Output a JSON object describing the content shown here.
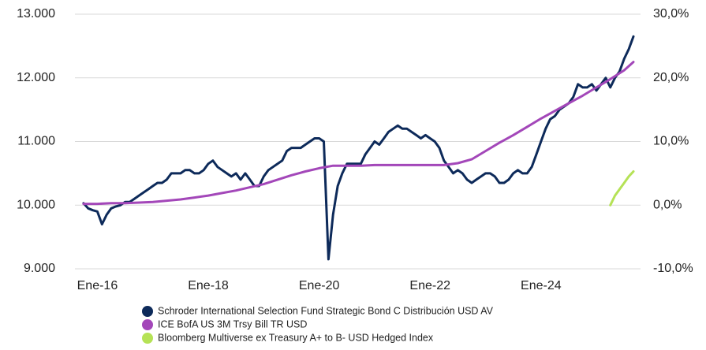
{
  "chart_data": {
    "type": "line",
    "xlim": [
      "2015-09",
      "2025-09"
    ],
    "xticks": [
      {
        "value": "2016-01",
        "label": "Ene-16"
      },
      {
        "value": "2018-01",
        "label": "Ene-18"
      },
      {
        "value": "2020-01",
        "label": "Ene-20"
      },
      {
        "value": "2022-01",
        "label": "Ene-22"
      },
      {
        "value": "2024-01",
        "label": "Ene-24"
      }
    ],
    "ylim": [
      9000,
      13000
    ],
    "yticks": [
      {
        "value": 9000,
        "label": "9.000"
      },
      {
        "value": 10000,
        "label": "10.000"
      },
      {
        "value": 11000,
        "label": "11.000"
      },
      {
        "value": 12000,
        "label": "12.000"
      },
      {
        "value": 13000,
        "label": "13.000"
      }
    ],
    "y2lim": [
      -10,
      30
    ],
    "y2ticks": [
      {
        "value": -10,
        "label": "-10,0%"
      },
      {
        "value": 0,
        "label": "0,0%"
      },
      {
        "value": 10,
        "label": "10,0%"
      },
      {
        "value": 20,
        "label": "20,0%"
      },
      {
        "value": 30,
        "label": "30,0%"
      }
    ],
    "grid": true,
    "legend": "bottom",
    "series": [
      {
        "name": "Schroder International Selection Fund Strategic Bond C Distribución USD AV",
        "color": "#0d2a5a",
        "x": [
          "2015-10",
          "2015-11",
          "2015-12",
          "2016-01",
          "2016-02",
          "2016-03",
          "2016-04",
          "2016-05",
          "2016-06",
          "2016-07",
          "2016-08",
          "2016-09",
          "2016-10",
          "2016-11",
          "2016-12",
          "2017-01",
          "2017-02",
          "2017-03",
          "2017-04",
          "2017-05",
          "2017-06",
          "2017-07",
          "2017-08",
          "2017-09",
          "2017-10",
          "2017-11",
          "2017-12",
          "2018-01",
          "2018-02",
          "2018-03",
          "2018-04",
          "2018-05",
          "2018-06",
          "2018-07",
          "2018-08",
          "2018-09",
          "2018-10",
          "2018-11",
          "2018-12",
          "2019-01",
          "2019-02",
          "2019-03",
          "2019-04",
          "2019-05",
          "2019-06",
          "2019-07",
          "2019-08",
          "2019-09",
          "2019-10",
          "2019-11",
          "2019-12",
          "2020-01",
          "2020-02",
          "2020-03",
          "2020-04",
          "2020-05",
          "2020-06",
          "2020-07",
          "2020-08",
          "2020-09",
          "2020-10",
          "2020-11",
          "2020-12",
          "2021-01",
          "2021-02",
          "2021-03",
          "2021-04",
          "2021-05",
          "2021-06",
          "2021-07",
          "2021-08",
          "2021-09",
          "2021-10",
          "2021-11",
          "2021-12",
          "2022-01",
          "2022-02",
          "2022-03",
          "2022-04",
          "2022-05",
          "2022-06",
          "2022-07",
          "2022-08",
          "2022-09",
          "2022-10",
          "2022-11",
          "2022-12",
          "2023-01",
          "2023-02",
          "2023-03",
          "2023-04",
          "2023-05",
          "2023-06",
          "2023-07",
          "2023-08",
          "2023-09",
          "2023-10",
          "2023-11",
          "2023-12",
          "2024-01",
          "2024-02",
          "2024-03",
          "2024-04",
          "2024-05",
          "2024-06",
          "2024-07",
          "2024-08",
          "2024-09",
          "2024-10",
          "2024-11",
          "2024-12",
          "2025-01",
          "2025-02",
          "2025-03",
          "2025-04",
          "2025-05",
          "2025-06",
          "2025-07",
          "2025-08",
          "2025-09"
        ],
        "values": [
          10030,
          9950,
          9920,
          9900,
          9700,
          9850,
          9950,
          9980,
          10000,
          10050,
          10050,
          10100,
          10150,
          10200,
          10250,
          10300,
          10350,
          10350,
          10400,
          10500,
          10500,
          10500,
          10550,
          10550,
          10500,
          10500,
          10550,
          10650,
          10700,
          10600,
          10550,
          10500,
          10450,
          10500,
          10400,
          10500,
          10400,
          10300,
          10300,
          10450,
          10550,
          10600,
          10650,
          10700,
          10850,
          10900,
          10900,
          10900,
          10950,
          11000,
          11050,
          11050,
          11000,
          9150,
          9850,
          10300,
          10500,
          10650,
          10650,
          10650,
          10650,
          10800,
          10900,
          11000,
          10950,
          11050,
          11150,
          11200,
          11250,
          11200,
          11200,
          11150,
          11100,
          11050,
          11100,
          11050,
          11000,
          10900,
          10700,
          10600,
          10500,
          10550,
          10500,
          10400,
          10350,
          10400,
          10450,
          10500,
          10500,
          10450,
          10350,
          10350,
          10400,
          10500,
          10550,
          10500,
          10500,
          10600,
          10800,
          11000,
          11200,
          11350,
          11400,
          11500,
          11550,
          11600,
          11700,
          11900,
          11850,
          11850,
          11900,
          11800,
          11900,
          12000,
          11850,
          12000,
          12100,
          12300,
          12450,
          12650
        ]
      },
      {
        "name": "ICE BofA US 3M Trsy Bill TR USD",
        "color": "#a347b9",
        "x": [
          "2015-10",
          "2016-01",
          "2016-04",
          "2016-07",
          "2016-10",
          "2017-01",
          "2017-04",
          "2017-07",
          "2017-10",
          "2018-01",
          "2018-04",
          "2018-07",
          "2018-10",
          "2019-01",
          "2019-04",
          "2019-07",
          "2019-10",
          "2020-01",
          "2020-04",
          "2020-07",
          "2020-10",
          "2021-01",
          "2021-04",
          "2021-07",
          "2021-10",
          "2022-01",
          "2022-04",
          "2022-07",
          "2022-10",
          "2023-01",
          "2023-04",
          "2023-07",
          "2023-10",
          "2024-01",
          "2024-04",
          "2024-07",
          "2024-10",
          "2025-01",
          "2025-04",
          "2025-07",
          "2025-09"
        ],
        "values": [
          10020,
          10020,
          10030,
          10030,
          10040,
          10050,
          10070,
          10090,
          10120,
          10150,
          10190,
          10230,
          10280,
          10330,
          10400,
          10470,
          10530,
          10580,
          10620,
          10620,
          10620,
          10630,
          10630,
          10630,
          10630,
          10630,
          10630,
          10660,
          10720,
          10850,
          10980,
          11100,
          11230,
          11360,
          11480,
          11600,
          11720,
          11850,
          11980,
          12120,
          12250
        ]
      },
      {
        "name": "Bloomberg Multiverse ex Treasury A+ to B- USD Hedged Index",
        "color": "#b5e256",
        "axis": "y2",
        "x": [
          "2025-04",
          "2025-05",
          "2025-06",
          "2025-07",
          "2025-08",
          "2025-09"
        ],
        "values": [
          0,
          1.5,
          2.5,
          3.5,
          4.5,
          5.3
        ]
      }
    ]
  }
}
